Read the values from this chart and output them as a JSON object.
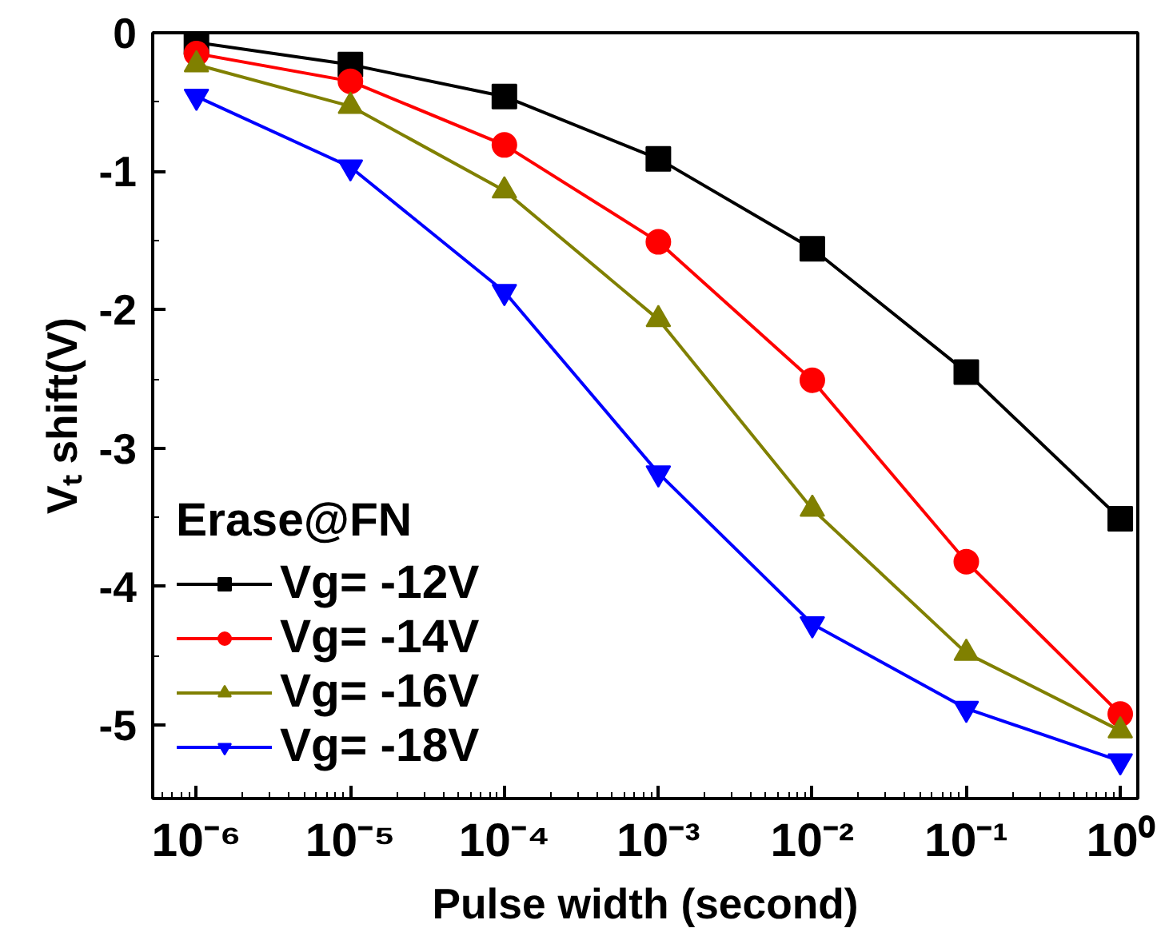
{
  "chart_data": {
    "type": "line",
    "xlabel": "Pulse width (second)",
    "ylabel": "Vₜ shift(V)",
    "log": "x",
    "x": [
      1e-06,
      1e-05,
      0.0001,
      0.001,
      0.01,
      0.1,
      1
    ],
    "xlim": [
      5.2e-07,
      1.3
    ],
    "ylim": [
      -5.53,
      0
    ],
    "xticks": [
      {
        "value": 1e-06,
        "label": "10⁻⁶"
      },
      {
        "value": 1e-05,
        "label": "10⁻⁵"
      },
      {
        "value": 0.0001,
        "label": "10⁻⁴"
      },
      {
        "value": 0.001,
        "label": "10⁻³"
      },
      {
        "value": 0.01,
        "label": "10⁻²"
      },
      {
        "value": 0.1,
        "label": "10⁻¹"
      },
      {
        "value": 1,
        "label": "10⁰"
      }
    ],
    "yticks": [
      0,
      -1,
      -2,
      -3,
      -4,
      -5
    ],
    "grid": false,
    "legend": "bottom left",
    "legend_title": "Erase@FN",
    "line_style": "solid",
    "series": [
      {
        "name": "Vg= -12V",
        "color": "#000000",
        "marker": "square",
        "values": [
          -0.07,
          -0.23,
          -0.46,
          -0.91,
          -1.56,
          -2.45,
          -3.51
        ]
      },
      {
        "name": "Vg= -14V",
        "color": "#ff0000",
        "marker": "circle",
        "values": [
          -0.15,
          -0.35,
          -0.81,
          -1.51,
          -2.51,
          -3.82,
          -4.92
        ]
      },
      {
        "name": "Vg= -16V",
        "color": "#808000",
        "marker": "triangle",
        "values": [
          -0.23,
          -0.53,
          -1.14,
          -2.07,
          -3.44,
          -4.48,
          -5.04
        ]
      },
      {
        "name": "Vg= -18V",
        "color": "#0000ff",
        "marker": "triangle",
        "values": [
          -0.46,
          -0.97,
          -1.87,
          -3.18,
          -4.27,
          -4.88,
          -5.26
        ]
      }
    ]
  }
}
